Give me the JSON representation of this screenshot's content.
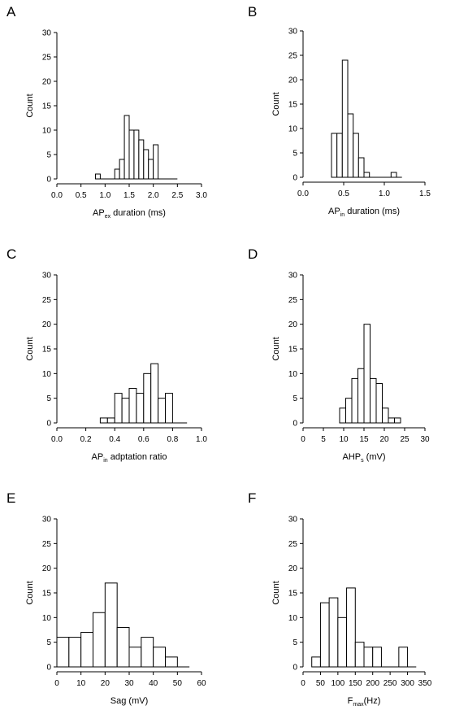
{
  "chart_data": [
    {
      "panel": "A",
      "type": "bar",
      "bins": [
        [
          0.8,
          0.9
        ],
        [
          0.9,
          1.0
        ],
        [
          1.0,
          1.1
        ],
        [
          1.1,
          1.2
        ],
        [
          1.2,
          1.3
        ],
        [
          1.3,
          1.4
        ],
        [
          1.4,
          1.5
        ],
        [
          1.5,
          1.6
        ],
        [
          1.6,
          1.7
        ],
        [
          1.7,
          1.8
        ],
        [
          1.8,
          1.9
        ],
        [
          1.9,
          2.0
        ],
        [
          2.0,
          2.1
        ],
        [
          2.1,
          2.2
        ],
        [
          2.2,
          2.3
        ],
        [
          2.3,
          2.4
        ],
        [
          2.4,
          2.5
        ]
      ],
      "values": [
        1,
        0,
        0,
        0,
        2,
        4,
        13,
        10,
        10,
        8,
        6,
        4,
        7,
        0,
        0,
        0,
        0
      ],
      "xlim": [
        0,
        3.0
      ],
      "ylim": [
        0,
        30
      ],
      "xticks": [
        "0.0",
        "0.5",
        "1.0",
        "1.5",
        "2.0",
        "2.5",
        "3.0"
      ],
      "yticks": [
        "0",
        "5",
        "10",
        "15",
        "20",
        "25",
        "30"
      ],
      "ylabel": "Count",
      "xlabel": {
        "main": "AP",
        "sub": "ex",
        "rest": " duration (ms)"
      }
    },
    {
      "panel": "B",
      "type": "bar",
      "bins": [
        [
          0.35,
          0.417
        ],
        [
          0.417,
          0.483
        ],
        [
          0.483,
          0.55
        ],
        [
          0.55,
          0.617
        ],
        [
          0.617,
          0.683
        ],
        [
          0.683,
          0.75
        ],
        [
          0.75,
          0.817
        ],
        [
          0.817,
          0.883
        ],
        [
          0.883,
          0.95
        ],
        [
          0.95,
          1.017
        ],
        [
          1.017,
          1.083
        ],
        [
          1.083,
          1.15
        ],
        [
          1.15,
          1.217
        ]
      ],
      "values": [
        9,
        9,
        24,
        13,
        9,
        4,
        1,
        0,
        0,
        0,
        0,
        1,
        0
      ],
      "xlim": [
        0,
        1.5
      ],
      "ylim": [
        0,
        30
      ],
      "xticks": [
        "0.0",
        "0.5",
        "1.0",
        "1.5"
      ],
      "yticks": [
        "0",
        "5",
        "10",
        "15",
        "20",
        "25",
        "30"
      ],
      "ylabel": "Count",
      "xlabel": {
        "main": "AP",
        "sub": "in",
        "rest": " duration (ms)"
      }
    },
    {
      "panel": "C",
      "type": "bar",
      "bins": [
        [
          0.3,
          0.35
        ],
        [
          0.35,
          0.4
        ],
        [
          0.4,
          0.45
        ],
        [
          0.45,
          0.5
        ],
        [
          0.5,
          0.55
        ],
        [
          0.55,
          0.6
        ],
        [
          0.6,
          0.65
        ],
        [
          0.65,
          0.7
        ],
        [
          0.7,
          0.75
        ],
        [
          0.75,
          0.8
        ],
        [
          0.8,
          0.85
        ],
        [
          0.85,
          0.9
        ]
      ],
      "values": [
        1,
        1,
        6,
        5,
        7,
        6,
        10,
        12,
        5,
        6,
        0,
        0
      ],
      "xlim": [
        0,
        1.0
      ],
      "ylim": [
        0,
        30
      ],
      "xticks": [
        "0.0",
        "0.2",
        "0.4",
        "0.6",
        "0.8",
        "1.0"
      ],
      "yticks": [
        "0",
        "5",
        "10",
        "15",
        "20",
        "25",
        "30"
      ],
      "ylabel": "Count",
      "xlabel": {
        "main": "AP",
        "sub": "in",
        "rest": " adptation ratio"
      }
    },
    {
      "panel": "D",
      "type": "bar",
      "bins": [
        [
          9,
          10.5
        ],
        [
          10.5,
          12
        ],
        [
          12,
          13.5
        ],
        [
          13.5,
          15
        ],
        [
          15,
          16.5
        ],
        [
          16.5,
          18
        ],
        [
          18,
          19.5
        ],
        [
          19.5,
          21
        ],
        [
          21,
          22.5
        ],
        [
          22.5,
          24
        ]
      ],
      "values": [
        3,
        5,
        9,
        11,
        20,
        9,
        8,
        3,
        1,
        1
      ],
      "xlim": [
        0,
        30
      ],
      "ylim": [
        0,
        30
      ],
      "xticks": [
        "0",
        "5",
        "10",
        "15",
        "20",
        "25",
        "30"
      ],
      "yticks": [
        "0",
        "5",
        "10",
        "15",
        "20",
        "25",
        "30"
      ],
      "ylabel": "Count",
      "xlabel": {
        "main": "AHP",
        "sub": "s",
        "rest": " (mV)"
      }
    },
    {
      "panel": "E",
      "type": "bar",
      "bins": [
        [
          0,
          5
        ],
        [
          5,
          10
        ],
        [
          10,
          15
        ],
        [
          15,
          20
        ],
        [
          20,
          25
        ],
        [
          25,
          30
        ],
        [
          30,
          35
        ],
        [
          35,
          40
        ],
        [
          40,
          45
        ],
        [
          45,
          50
        ],
        [
          50,
          55
        ]
      ],
      "values": [
        6,
        6,
        7,
        11,
        17,
        8,
        4,
        6,
        4,
        2,
        0
      ],
      "xlim": [
        0,
        60
      ],
      "ylim": [
        0,
        30
      ],
      "xticks": [
        "0",
        "10",
        "20",
        "30",
        "40",
        "50",
        "60"
      ],
      "yticks": [
        "0",
        "5",
        "10",
        "15",
        "20",
        "25",
        "30"
      ],
      "ylabel": "Count",
      "xlabel": {
        "main": "Sag",
        "sub": "",
        "rest": " (mV)"
      }
    },
    {
      "panel": "F",
      "type": "bar",
      "bins": [
        [
          25,
          50
        ],
        [
          50,
          75
        ],
        [
          75,
          100
        ],
        [
          100,
          125
        ],
        [
          125,
          150
        ],
        [
          150,
          175
        ],
        [
          175,
          200
        ],
        [
          200,
          225
        ],
        [
          225,
          250
        ],
        [
          250,
          275
        ],
        [
          275,
          300
        ],
        [
          300,
          325
        ]
      ],
      "values": [
        2,
        13,
        14,
        10,
        16,
        5,
        4,
        4,
        0,
        0,
        4,
        0
      ],
      "xlim": [
        0,
        350
      ],
      "ylim": [
        0,
        30
      ],
      "xticks": [
        "0",
        "50",
        "100",
        "150",
        "200",
        "250",
        "300",
        "350"
      ],
      "yticks": [
        "0",
        "5",
        "10",
        "15",
        "20",
        "25",
        "30"
      ],
      "ylabel": "Count",
      "xlabel": {
        "main": "F",
        "sub": "max",
        "rest": "(Hz)"
      }
    }
  ],
  "colors": {
    "bar_fill": "#ffffff",
    "stroke": "#000000"
  }
}
